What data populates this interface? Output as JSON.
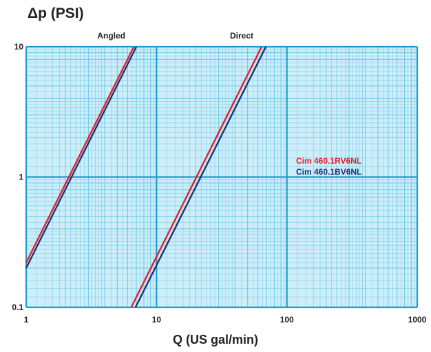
{
  "chart_data": {
    "type": "line",
    "xscale": "log",
    "yscale": "log",
    "xlim": [
      1,
      1000
    ],
    "ylim": [
      0.1,
      10
    ],
    "grid": true,
    "ylabel": "Δp (PSI)",
    "xlabel": "Q (US gal/min)",
    "x_ticks": [
      "1",
      "10",
      "100",
      "1000"
    ],
    "y_ticks": [
      "0.1",
      "1",
      "10"
    ],
    "group_labels": [
      {
        "text": "Angled",
        "x": 4.5
      },
      {
        "text": "Direct",
        "x": 45
      }
    ],
    "legend": {
      "placement": "right",
      "entries": [
        {
          "name": "Cim 460.1RV6NL",
          "color": "#e0202a"
        },
        {
          "name": "Cim 460.1BV6NL",
          "color": "#1f2f7a"
        }
      ]
    },
    "series": [
      {
        "name": "Cim 460.1RV6NL",
        "group": "Angled",
        "color": "#e0202a",
        "points": [
          [
            1,
            0.22
          ],
          [
            6.7,
            10
          ]
        ]
      },
      {
        "name": "Cim 460.1BV6NL",
        "group": "Angled",
        "color": "#1f2f7a",
        "points": [
          [
            1,
            0.2
          ],
          [
            7.0,
            10
          ]
        ]
      },
      {
        "name": "Cim 460.1RV6NL",
        "group": "Direct",
        "color": "#e0202a",
        "points": [
          [
            6.4,
            0.1
          ],
          [
            64,
            10
          ]
        ]
      },
      {
        "name": "Cim 460.1BV6NL",
        "group": "Direct",
        "color": "#1f2f7a",
        "points": [
          [
            6.9,
            0.1
          ],
          [
            69,
            10
          ]
        ]
      }
    ],
    "colors": {
      "plot_background": "#cdeef8",
      "grid_minor": "#6cc6e6",
      "grid_major": "#1e9cd0"
    }
  }
}
